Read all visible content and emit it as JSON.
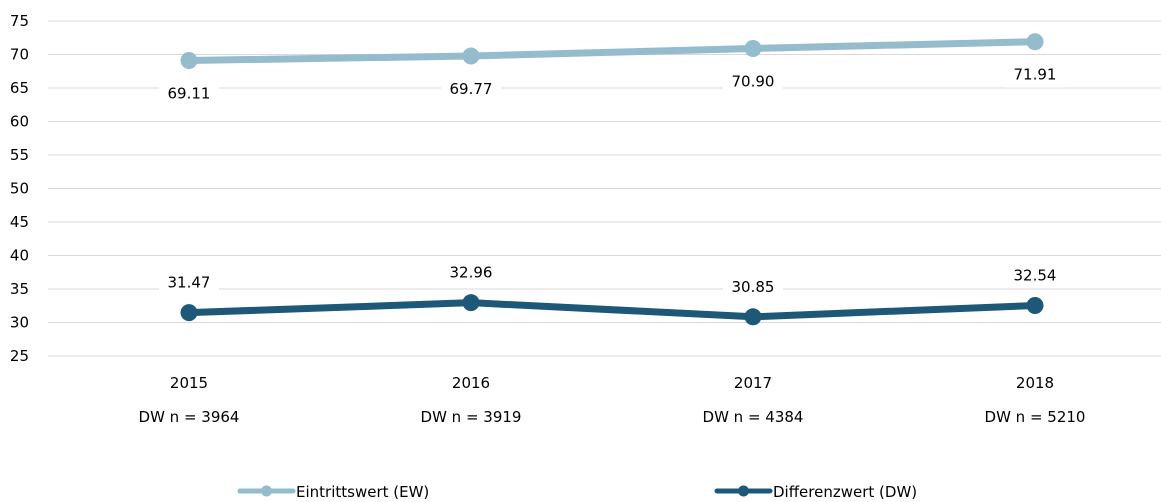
{
  "chart_data": {
    "type": "line",
    "title": "",
    "xlabel": "",
    "ylabel": "",
    "categories": [
      "2015",
      "2016",
      "2017",
      "2018"
    ],
    "category_sublabels": [
      "DW n = 3964",
      "DW n = 3919",
      "DW n = 4384",
      "DW n = 5210"
    ],
    "ylim": [
      25,
      75
    ],
    "y_ticks": [
      25,
      30,
      35,
      40,
      45,
      50,
      55,
      60,
      65,
      70,
      75
    ],
    "grid": "horizontal",
    "legend_position": "bottom",
    "series": [
      {
        "name": "Eintrittswert (EW)",
        "values": [
          69.11,
          69.77,
          70.9,
          71.91
        ],
        "labels": [
          "69.11",
          "69.77",
          "70.90",
          "71.91"
        ],
        "label_position": "below",
        "color": "#94bccd"
      },
      {
        "name": "Differenzwert (DW)",
        "values": [
          31.47,
          32.96,
          30.85,
          32.54
        ],
        "labels": [
          "31.47",
          "32.96",
          "30.85",
          "32.54"
        ],
        "label_position": "above",
        "color": "#1d5878"
      }
    ]
  }
}
